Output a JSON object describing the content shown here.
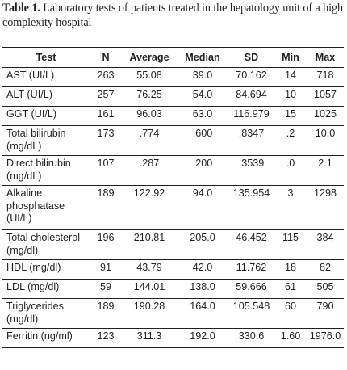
{
  "caption": {
    "label": "Table 1.",
    "text": " Laboratory tests of patients treated in the hepatology unit of a high complexity hospital"
  },
  "table": {
    "headers": {
      "test": "Test",
      "n": "N",
      "average": "Average",
      "median": "Median",
      "sd": "SD",
      "min": "Min",
      "max": "Max"
    },
    "rows": [
      {
        "test": "AST (UI/L)",
        "n": "263",
        "average": "55.08",
        "median": "39.0",
        "sd": "70.162",
        "min": "14",
        "max": "718"
      },
      {
        "test": "ALT (UI/L)",
        "n": "257",
        "average": "76.25",
        "median": "54.0",
        "sd": "84.694",
        "min": "10",
        "max": "1057"
      },
      {
        "test": "GGT (UI/L)",
        "n": "161",
        "average": "96.03",
        "median": "63.0",
        "sd": "116.979",
        "min": "15",
        "max": "1025"
      },
      {
        "test": "Total bilirubin (mg/dL)",
        "n": "173",
        "average": ".774",
        "median": ".600",
        "sd": ".8347",
        "min": ".2",
        "max": "10.0"
      },
      {
        "test": "Direct bilirubin (mg/dL)",
        "n": "107",
        "average": ".287",
        "median": ".200",
        "sd": ".3539",
        "min": ".0",
        "max": "2.1"
      },
      {
        "test": "Alkaline phosphatase (UI/L)",
        "n": "189",
        "average": "122.92",
        "median": "94.0",
        "sd": "135.954",
        "min": "3",
        "max": "1298"
      },
      {
        "test": "Total cholesterol (mg/dl)",
        "n": "196",
        "average": "210.81",
        "median": "205.0",
        "sd": "46.452",
        "min": "115",
        "max": "384"
      },
      {
        "test": "HDL (mg/dl)",
        "n": "91",
        "average": "43.79",
        "median": "42.0",
        "sd": "11.762",
        "min": "18",
        "max": "82"
      },
      {
        "test": "LDL (mg/dl)",
        "n": "59",
        "average": "144.01",
        "median": "138.0",
        "sd": "59.666",
        "min": "61",
        "max": "505"
      },
      {
        "test": "Triglycerides (mg/dl)",
        "n": "189",
        "average": "190.28",
        "median": "164.0",
        "sd": "105.548",
        "min": "60",
        "max": "790"
      },
      {
        "test": "Ferritin (ng/ml)",
        "n": "123",
        "average": "311.3",
        "median": "192.0",
        "sd": "330.6",
        "min": "1.60",
        "max": "1976.0"
      }
    ]
  }
}
